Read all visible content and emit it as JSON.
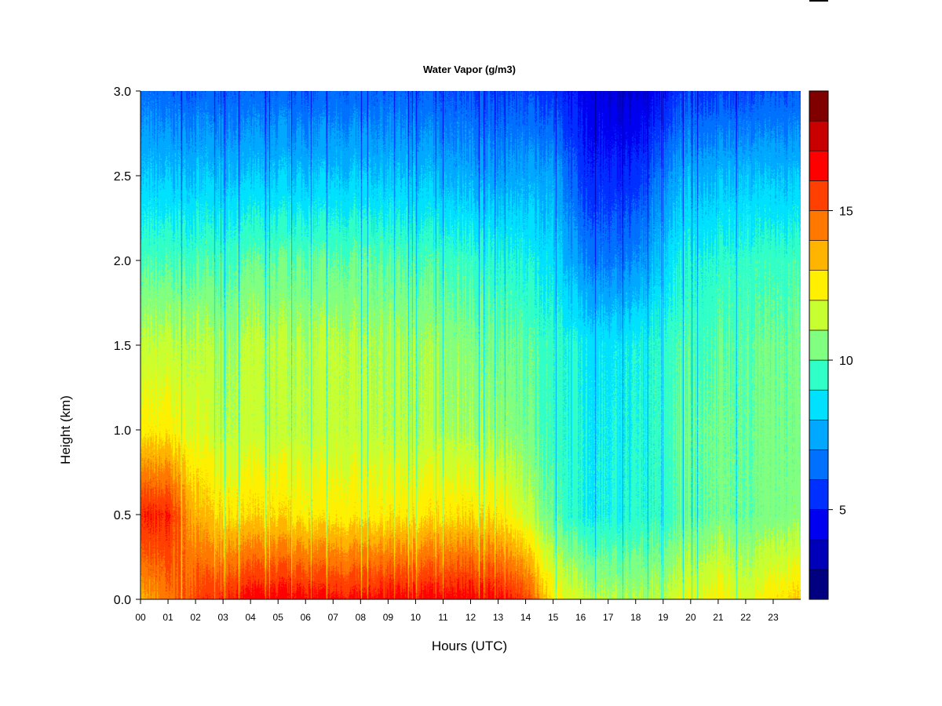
{
  "chart_data": {
    "type": "heatmap",
    "title": "Water Vapor (g/m3)",
    "xlabel": "Hours (UTC)",
    "ylabel": "Height (km)",
    "xlim": [
      0,
      24
    ],
    "ylim": [
      0.0,
      3.0
    ],
    "x_tick_labels": [
      "00",
      "01",
      "02",
      "03",
      "04",
      "05",
      "06",
      "07",
      "08",
      "09",
      "10",
      "11",
      "12",
      "13",
      "14",
      "15",
      "16",
      "17",
      "18",
      "19",
      "20",
      "21",
      "22",
      "23"
    ],
    "y_tick_labels": [
      "0.0",
      "0.5",
      "1.0",
      "1.5",
      "2.0",
      "2.5",
      "3.0"
    ],
    "y_tick_values": [
      0.0,
      0.5,
      1.0,
      1.5,
      2.0,
      2.5,
      3.0
    ],
    "colorbar": {
      "min": 2,
      "max": 19,
      "tick_labels": [
        "5",
        "10",
        "15"
      ],
      "tick_values": [
        5,
        10,
        15
      ],
      "levels": [
        2,
        3,
        4,
        5,
        6,
        7,
        8,
        9,
        10,
        11,
        12,
        13,
        14,
        15,
        16,
        17,
        18,
        19
      ],
      "colors": [
        "#000080",
        "#0000B8",
        "#0000F0",
        "#0030FF",
        "#0070FF",
        "#00A8FF",
        "#00E0FF",
        "#30FFC8",
        "#80FF80",
        "#C8FF30",
        "#FFF000",
        "#FFB400",
        "#FF7800",
        "#FF4000",
        "#FF0000",
        "#C80000",
        "#800000"
      ]
    },
    "sample_grid": {
      "hours": [
        0,
        1,
        2,
        3,
        4,
        5,
        6,
        7,
        8,
        9,
        10,
        11,
        12,
        13,
        14,
        15,
        16,
        17,
        18,
        19,
        20,
        21,
        22,
        23,
        24
      ],
      "heights_km": [
        0.0,
        0.5,
        1.0,
        1.5,
        2.0,
        2.5,
        3.0
      ],
      "values_gm3": [
        [
          13.5,
          16.0,
          12.5,
          11.4,
          9.8,
          8.0,
          6.5
        ],
        [
          14.5,
          16.0,
          12.5,
          11.4,
          9.8,
          8.0,
          6.3
        ],
        [
          15.5,
          13.5,
          11.8,
          11.3,
          9.8,
          8.0,
          6.2
        ],
        [
          16.0,
          12.8,
          11.4,
          11.0,
          9.8,
          8.0,
          6.3
        ],
        [
          16.5,
          12.8,
          11.4,
          11.3,
          10.0,
          8.0,
          6.2
        ],
        [
          16.5,
          12.8,
          11.3,
          11.2,
          10.0,
          8.0,
          6.3
        ],
        [
          16.5,
          12.6,
          11.4,
          11.2,
          10.1,
          8.0,
          6.1
        ],
        [
          16.3,
          12.5,
          11.4,
          11.3,
          10.0,
          8.0,
          6.3
        ],
        [
          16.2,
          12.5,
          11.3,
          11.0,
          10.0,
          8.0,
          6.2
        ],
        [
          16.5,
          12.6,
          11.3,
          11.1,
          10.0,
          8.0,
          6.3
        ],
        [
          16.5,
          12.6,
          11.2,
          11.0,
          9.8,
          8.0,
          6.2
        ],
        [
          16.6,
          12.8,
          11.2,
          10.8,
          9.8,
          7.8,
          6.1
        ],
        [
          16.6,
          12.8,
          11.0,
          10.6,
          9.6,
          7.6,
          6.0
        ],
        [
          16.5,
          12.7,
          10.8,
          10.3,
          9.3,
          7.4,
          5.8
        ],
        [
          15.5,
          11.5,
          10.3,
          10.0,
          9.0,
          7.5,
          5.8
        ],
        [
          12.5,
          10.0,
          9.5,
          9.5,
          8.5,
          7.5,
          5.5
        ],
        [
          11.5,
          9.0,
          9.0,
          8.8,
          7.0,
          5.5,
          4.5
        ],
        [
          11.2,
          9.0,
          8.9,
          8.6,
          6.6,
          5.2,
          4.0
        ],
        [
          11.0,
          9.2,
          9.0,
          8.9,
          6.9,
          5.3,
          3.8
        ],
        [
          11.5,
          9.6,
          9.7,
          9.6,
          8.4,
          7.0,
          5.0
        ],
        [
          12.0,
          10.0,
          10.2,
          9.8,
          9.2,
          7.8,
          5.8
        ],
        [
          12.5,
          10.3,
          10.3,
          10.0,
          9.3,
          7.8,
          5.7
        ],
        [
          11.8,
          10.2,
          10.2,
          10.1,
          9.5,
          8.0,
          5.8
        ],
        [
          12.6,
          10.4,
          10.3,
          10.2,
          9.6,
          7.9,
          6.0
        ],
        [
          13.0,
          10.5,
          10.3,
          10.2,
          9.6,
          7.9,
          6.0
        ]
      ]
    }
  }
}
